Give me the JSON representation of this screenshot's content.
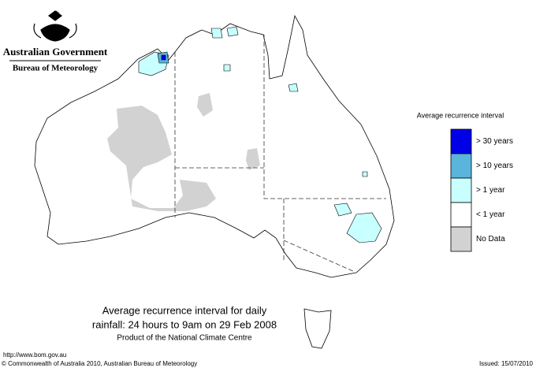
{
  "header": {
    "government": "Australian Government",
    "bureau": "Bureau of Meteorology"
  },
  "legend": {
    "title": "Average recurrence interval",
    "items": [
      {
        "name": "> 30 years",
        "color": "#0000e6"
      },
      {
        "name": "> 10 years",
        "color": "#5ab4dc"
      },
      {
        "name": "> 1 year",
        "color": "#c8ffff"
      },
      {
        "name": "< 1 year",
        "color": "#ffffff"
      },
      {
        "name": "No Data",
        "color": "#d2d2d2"
      }
    ]
  },
  "caption": {
    "line1": "Average recurrence interval for daily",
    "line2": "rainfall: 24 hours to 9am on 29 Feb 2008",
    "product": "Product of the National Climate Centre"
  },
  "footer": {
    "url": "http://www.bom.gov.au",
    "copyright": "© Commonwealth of Australia 2010, Australian Bureau of Meteorology",
    "issued": "Issued: 15/07/2010"
  }
}
